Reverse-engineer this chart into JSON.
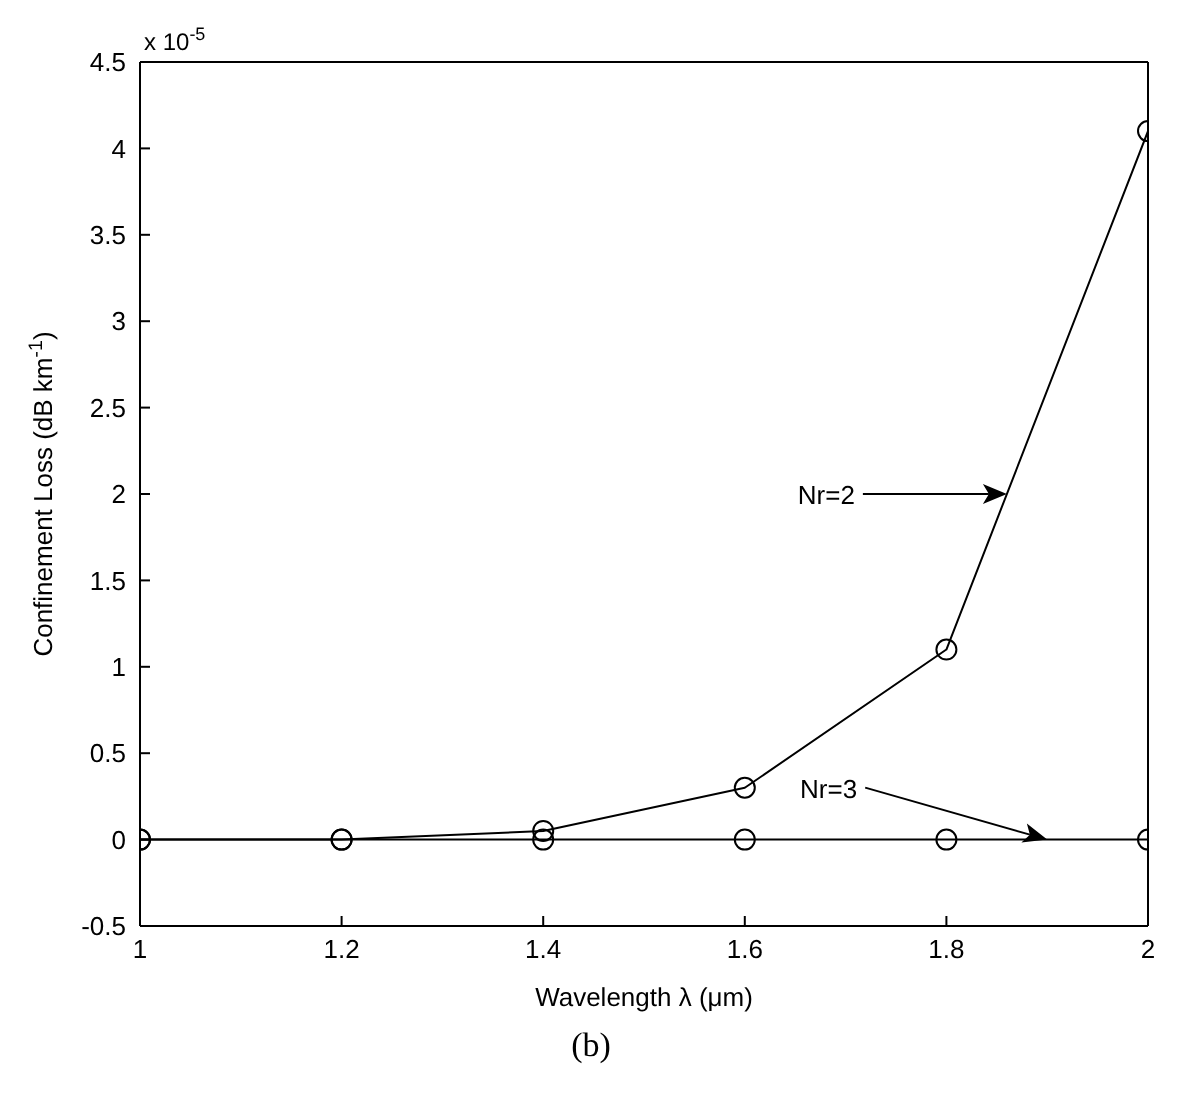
{
  "chart_data": {
    "type": "line",
    "xlabel": "Wavelength λ (μm)",
    "ylabel": "Confinement Loss (dB km$^{-1}$)",
    "x": [
      1,
      1.2,
      1.4,
      1.6,
      1.8,
      2
    ],
    "series": [
      {
        "name": "Nr=2",
        "color": "#000000",
        "values": [
          0,
          0,
          0.05,
          0.3,
          1.1,
          4.1
        ]
      },
      {
        "name": "Nr=3",
        "color": "#000000",
        "values": [
          0,
          0,
          0,
          0,
          0,
          0
        ]
      }
    ],
    "xlim": [
      1,
      2
    ],
    "xticks": [
      1,
      1.2,
      1.4,
      1.6,
      1.8,
      2
    ],
    "ylim": [
      -0.5,
      4.5
    ],
    "yticks": [
      -0.5,
      0,
      0.5,
      1,
      1.5,
      2,
      2.5,
      3,
      3.5,
      4,
      4.5
    ],
    "marker": "circle",
    "line_style": "solid",
    "grid": false,
    "legend": "right",
    "annotations": [
      "x 10$^{-5}$",
      "(b)"
    ]
  }
}
